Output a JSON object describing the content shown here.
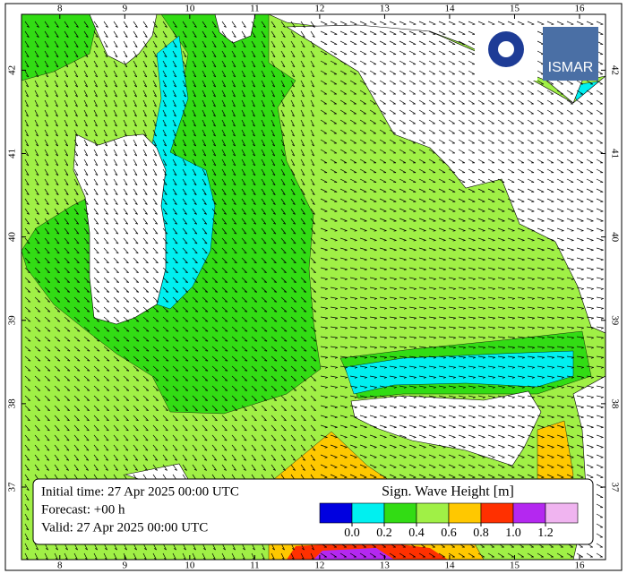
{
  "map": {
    "lon_range": [
      7.41,
      16.4
    ],
    "lat_range": [
      36.13,
      42.67
    ],
    "lon_ticks": [
      8,
      9,
      10,
      11,
      12,
      13,
      14,
      15,
      16
    ],
    "lat_ticks": [
      37,
      38,
      39,
      40,
      41,
      42
    ]
  },
  "info": {
    "lines": [
      "Initial time: 27 Apr 2025 00:00 UTC",
      "Forecast: +00 h",
      "Valid: 27 Apr 2025 00:00 UTC"
    ]
  },
  "legend": {
    "title": "Sign. Wave Height [m]",
    "colors": [
      "#0000e0",
      "#00f0f0",
      "#32dc14",
      "#a0f046",
      "#ffc800",
      "#ff3000",
      "#b428f0",
      "#f0b4f0"
    ],
    "levels": [
      {
        "value": 0,
        "label": "0.0"
      },
      {
        "value": 0.2,
        "label": "0.2"
      },
      {
        "value": 0.4,
        "label": "0.4"
      },
      {
        "value": 0.6,
        "label": "0.6"
      },
      {
        "value": 0.8,
        "label": "0.8"
      },
      {
        "value": 1,
        "label": "1.0"
      },
      {
        "value": 1.2,
        "label": "1.2"
      }
    ]
  },
  "logo": "ISMAR"
}
